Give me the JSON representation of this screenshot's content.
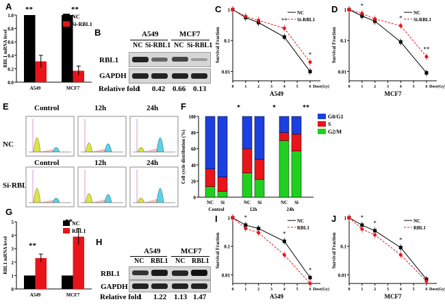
{
  "figure": {
    "panel_labels": [
      "A",
      "B",
      "C",
      "D",
      "E",
      "F",
      "G",
      "H",
      "I",
      "J"
    ]
  },
  "colors": {
    "nc": "#000000",
    "treat": "#e8141a",
    "g0g1": "#1c3fe0",
    "s": "#e8141a",
    "g2m": "#20d020"
  },
  "panelA": {
    "significance": [
      "**",
      "**"
    ]
  },
  "panelB": {
    "cell_lines": [
      "A549",
      "MCF7"
    ],
    "lanes": [
      "NC",
      "Si-RBL1",
      "NC",
      "Si-RBL1"
    ],
    "rows": [
      "RBL1",
      "GAPDH"
    ],
    "relative_label": "Relative fold",
    "relative_values": [
      "1",
      "0.42",
      "0.66",
      "0.13"
    ]
  },
  "panelE": {
    "cols": [
      "Control",
      "12h",
      "24h"
    ],
    "rows": [
      "NC",
      "Si-RBL1"
    ]
  },
  "panelF": {
    "significance": [
      "*",
      "*",
      "**"
    ],
    "group_labels": [
      "Control",
      "12h",
      "24h"
    ],
    "bar_labels": [
      "NC",
      "Si",
      "NC",
      "Si",
      "NC",
      "Si"
    ]
  },
  "panelG": {
    "significance": [
      "**",
      "**"
    ]
  },
  "panelH": {
    "cell_lines": [
      "A549",
      "MCF7"
    ],
    "lanes": [
      "NC",
      "RBL1",
      "NC",
      "RBL1"
    ],
    "rows": [
      "RBL1",
      "GAPDH"
    ],
    "relative_label": "Relative fold",
    "relative_values": [
      "1",
      "1.22",
      "1.13",
      "1.47"
    ]
  },
  "chart_data": [
    {
      "id": "A",
      "type": "bar",
      "ylabel": "RBL1 mRNA level",
      "categories": [
        "A549",
        "MCF7"
      ],
      "ylim": [
        0,
        1.0
      ],
      "yticks": [
        "0.0",
        "0.2",
        "0.4",
        "0.6",
        "0.8",
        "1.0"
      ],
      "legend": [
        "NC",
        "Si-RBL1"
      ],
      "series": [
        {
          "name": "NC",
          "values": [
            1.0,
            1.0
          ],
          "err": [
            0,
            0
          ]
        },
        {
          "name": "Si-RBL1",
          "values": [
            0.31,
            0.17
          ],
          "err": [
            0.09,
            0.07
          ]
        }
      ]
    },
    {
      "id": "C",
      "type": "line",
      "xlabel": "A549",
      "ylabel": "Survival Fraction",
      "x": [
        0,
        1,
        2,
        4,
        6
      ],
      "xticks": [
        "0",
        "1",
        "2",
        "3",
        "4",
        "5",
        "6"
      ],
      "xunit": "Dose(Gy)",
      "yscale": "log",
      "ylim": [
        0.005,
        1
      ],
      "yticks": [
        "0.01",
        "0.1",
        "1"
      ],
      "legend": [
        "NC",
        "Si-RBL1"
      ],
      "series": [
        {
          "name": "NC",
          "values": [
            1.0,
            0.55,
            0.38,
            0.13,
            0.01
          ]
        },
        {
          "name": "Si-RBL1",
          "values": [
            1.0,
            0.6,
            0.45,
            0.25,
            0.02
          ]
        }
      ],
      "significance": [
        {
          "x": 4,
          "text": "**"
        },
        {
          "x": 6,
          "text": "*"
        }
      ]
    },
    {
      "id": "D",
      "type": "line",
      "xlabel": "MCF7",
      "ylabel": "Survival Fraction",
      "x": [
        0,
        1,
        2,
        4,
        6
      ],
      "xticks": [
        "0",
        "1",
        "2",
        "3",
        "4",
        "5",
        "6"
      ],
      "xunit": "Dose(Gy)",
      "yscale": "log",
      "ylim": [
        0.005,
        1
      ],
      "yticks": [
        "0.01",
        "0.1",
        "1"
      ],
      "legend": [
        "NC",
        "Si-RBL1"
      ],
      "series": [
        {
          "name": "NC",
          "values": [
            1.0,
            0.62,
            0.42,
            0.09,
            0.009
          ]
        },
        {
          "name": "Si-RBL1",
          "values": [
            1.0,
            0.75,
            0.5,
            0.3,
            0.03
          ]
        }
      ],
      "significance": [
        {
          "x": 1,
          "text": "*"
        },
        {
          "x": 4,
          "text": "*"
        },
        {
          "x": 6,
          "text": "**"
        }
      ]
    },
    {
      "id": "F",
      "type": "bar",
      "stacked": true,
      "ylabel": "Cell cycle distribution (%)",
      "categories": [
        "Control NC",
        "Control Si",
        "12h NC",
        "12h Si",
        "24h NC",
        "24h Si"
      ],
      "ylim": [
        0,
        100
      ],
      "yticks": [
        "0",
        "20",
        "40",
        "60",
        "80",
        "100"
      ],
      "series": [
        {
          "name": "G2/M",
          "values": [
            13,
            7,
            30,
            22,
            70,
            57
          ]
        },
        {
          "name": "S",
          "values": [
            22,
            18,
            30,
            25,
            10,
            21
          ]
        },
        {
          "name": "G0/G1",
          "values": [
            65,
            75,
            40,
            53,
            20,
            22
          ]
        }
      ]
    },
    {
      "id": "G",
      "type": "bar",
      "ylabel": "RBL1 mRNA level",
      "categories": [
        "A549",
        "MCF7"
      ],
      "ylim": [
        0,
        5
      ],
      "yticks": [
        "0",
        "1",
        "2",
        "3",
        "4",
        "5"
      ],
      "legend": [
        "NC",
        "RBL1"
      ],
      "series": [
        {
          "name": "NC",
          "values": [
            1.0,
            1.0
          ],
          "err": [
            0,
            0
          ]
        },
        {
          "name": "RBL1",
          "values": [
            2.3,
            3.9
          ],
          "err": [
            0.3,
            0.6
          ]
        }
      ]
    },
    {
      "id": "I",
      "type": "line",
      "xlabel": "A549",
      "ylabel": "Survival Fraction",
      "x": [
        0,
        1,
        2,
        4,
        6
      ],
      "xticks": [
        "0",
        "1",
        "2",
        "3",
        "4",
        "5",
        "6"
      ],
      "xunit": "Dose(Gy)",
      "yscale": "log",
      "ylim": [
        0.005,
        1
      ],
      "yticks": [
        "0.01",
        "0.1",
        "1"
      ],
      "legend": [
        "NC",
        "RBL1"
      ],
      "series": [
        {
          "name": "NC",
          "values": [
            1.0,
            0.55,
            0.42,
            0.15,
            0.008
          ]
        },
        {
          "name": "RBL1",
          "values": [
            1.0,
            0.42,
            0.3,
            0.05,
            0.005
          ]
        }
      ],
      "significance": [
        {
          "x": 1,
          "text": "*"
        },
        {
          "x": 4,
          "text": "*"
        },
        {
          "x": 6,
          "text": "*"
        }
      ]
    },
    {
      "id": "J",
      "type": "line",
      "xlabel": "MCF7",
      "ylabel": "Survival Fraction",
      "x": [
        0,
        1,
        2,
        4,
        6
      ],
      "xticks": [
        "0",
        "1",
        "2",
        "3",
        "4",
        "5",
        "6"
      ],
      "xunit": "Dose(Gy)",
      "yscale": "log",
      "ylim": [
        0.005,
        1
      ],
      "yticks": [
        "0.01",
        "0.1",
        "1"
      ],
      "legend": [
        "NC",
        "RBL1"
      ],
      "series": [
        {
          "name": "NC",
          "values": [
            1.0,
            0.55,
            0.35,
            0.09,
            0.007
          ]
        },
        {
          "name": "RBL1",
          "values": [
            1.0,
            0.4,
            0.25,
            0.05,
            0.006
          ]
        }
      ],
      "significance": [
        {
          "x": 1,
          "text": "*"
        },
        {
          "x": 2,
          "text": "*"
        },
        {
          "x": 4,
          "text": "*"
        }
      ]
    }
  ]
}
